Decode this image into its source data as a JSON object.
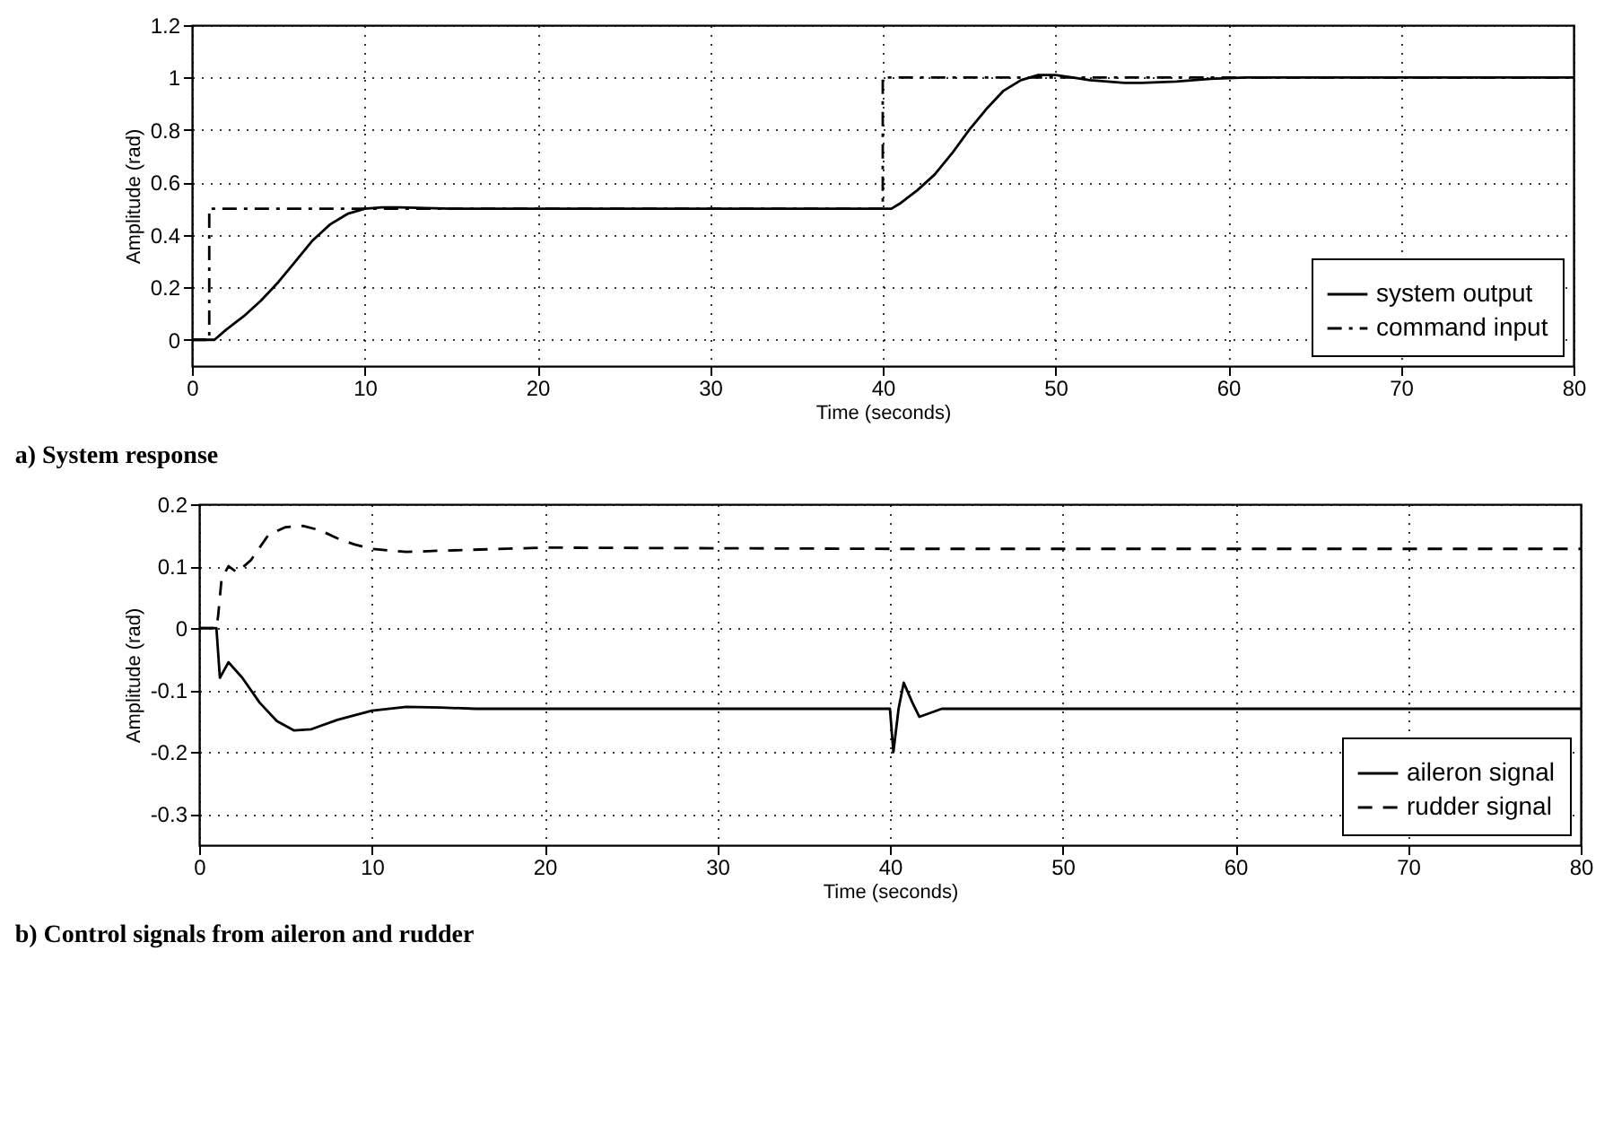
{
  "chart_data": [
    {
      "type": "line",
      "title": "a) System response",
      "xlabel": "Time (seconds)",
      "ylabel": "Amplitude (rad)",
      "xlim": [
        0,
        80
      ],
      "xticks": [
        0,
        10,
        20,
        30,
        40,
        50,
        60,
        70,
        80
      ],
      "ylim": [
        -0.1,
        1.2
      ],
      "yticks": [
        0,
        0.2,
        0.4,
        0.6,
        0.8,
        1,
        1.2
      ],
      "grid": true,
      "legend": "bottom right",
      "series": [
        {
          "name": "system output",
          "color": "#000000",
          "line_style": "solid",
          "x": [
            0,
            1.3,
            2,
            3,
            4,
            5,
            6,
            7,
            8,
            9,
            10,
            11,
            12,
            15,
            40,
            40.5,
            41,
            42,
            43,
            44,
            45,
            46,
            47,
            48,
            49,
            50,
            51,
            52,
            53,
            54,
            55,
            57,
            59,
            61,
            65,
            80
          ],
          "values": [
            0,
            0,
            0.04,
            0.09,
            0.15,
            0.22,
            0.3,
            0.38,
            0.44,
            0.48,
            0.5,
            0.505,
            0.505,
            0.5,
            0.5,
            0.5,
            0.52,
            0.57,
            0.63,
            0.71,
            0.8,
            0.88,
            0.95,
            0.99,
            1.01,
            1.01,
            1,
            0.99,
            0.985,
            0.98,
            0.98,
            0.985,
            0.995,
            1,
            1,
            1
          ]
        },
        {
          "name": "command input",
          "color": "#000000",
          "line_style": "dashdot",
          "x": [
            0,
            1,
            1,
            40,
            40,
            80
          ],
          "values": [
            0,
            0,
            0.5,
            0.5,
            1,
            1
          ]
        }
      ]
    },
    {
      "type": "line",
      "title": "b) Control signals from aileron and rudder",
      "xlabel": "Time (seconds)",
      "ylabel": "Amplitude (rad)",
      "xlim": [
        0,
        80
      ],
      "xticks": [
        0,
        10,
        20,
        30,
        40,
        50,
        60,
        70,
        80
      ],
      "ylim": [
        -0.35,
        0.2
      ],
      "yticks": [
        -0.3,
        -0.2,
        -0.1,
        0,
        0.1,
        0.2
      ],
      "grid": true,
      "legend": "bottom right",
      "series": [
        {
          "name": "aileron signal",
          "color": "#000000",
          "line_style": "solid",
          "x": [
            0,
            1,
            1.2,
            1.7,
            2.5,
            3.5,
            4.5,
            5.5,
            6.5,
            8,
            10,
            12,
            14,
            16,
            20,
            40,
            40.2,
            40.5,
            40.8,
            41.3,
            41.7,
            42.5,
            43,
            80
          ],
          "values": [
            0,
            0,
            -0.08,
            -0.055,
            -0.08,
            -0.12,
            -0.15,
            -0.165,
            -0.163,
            -0.148,
            -0.133,
            -0.127,
            -0.128,
            -0.13,
            -0.13,
            -0.13,
            -0.2,
            -0.13,
            -0.088,
            -0.12,
            -0.143,
            -0.135,
            -0.13,
            -0.13
          ]
        },
        {
          "name": "rudder signal",
          "color": "#000000",
          "line_style": "dashed",
          "x": [
            0,
            1,
            1.1,
            1.3,
            1.7,
            2.2,
            3,
            4,
            5,
            6,
            7,
            8,
            9,
            10,
            12,
            14,
            20,
            40,
            80
          ],
          "values": [
            0,
            0,
            0.02,
            0.08,
            0.1,
            0.09,
            0.11,
            0.15,
            0.163,
            0.165,
            0.158,
            0.145,
            0.135,
            0.128,
            0.123,
            0.125,
            0.13,
            0.128,
            0.128
          ]
        }
      ]
    }
  ]
}
